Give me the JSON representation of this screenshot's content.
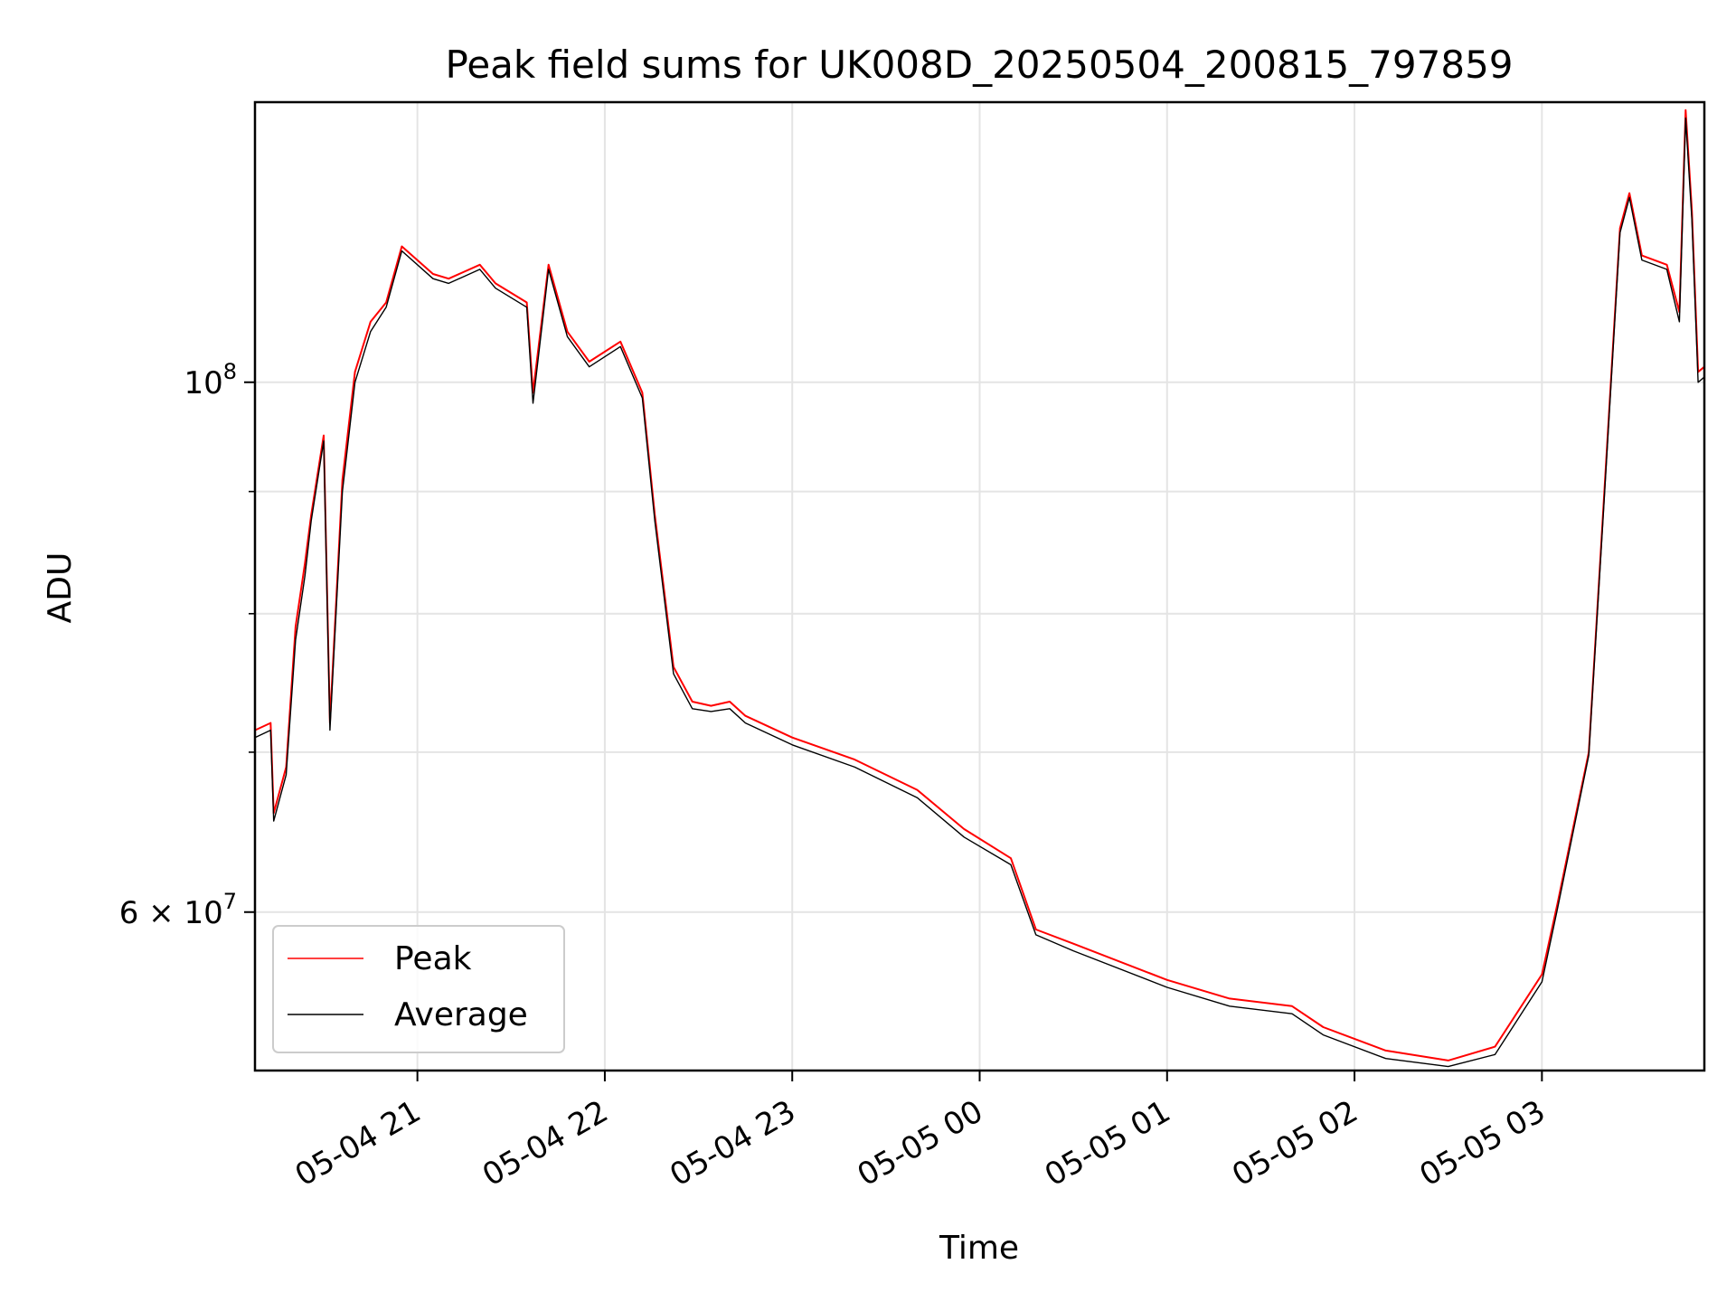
{
  "chart_data": {
    "type": "line",
    "title": "Peak field sums for UK008D_20250504_200815_797859",
    "xlabel": "Time",
    "ylabel": "ADU",
    "y_scale": "log",
    "ylim": [
      51500000,
      131000000
    ],
    "xlim": [
      "2025-05-04 20:08",
      "2025-05-05 03:52"
    ],
    "grid": true,
    "legend_position": "lower-left",
    "x_ticks": [
      {
        "t": "2025-05-04 21:00",
        "label": "05-04 21"
      },
      {
        "t": "2025-05-04 22:00",
        "label": "05-04 22"
      },
      {
        "t": "2025-05-04 23:00",
        "label": "05-04 23"
      },
      {
        "t": "2025-05-05 00:00",
        "label": "05-05 00"
      },
      {
        "t": "2025-05-05 01:00",
        "label": "05-05 01"
      },
      {
        "t": "2025-05-05 02:00",
        "label": "05-05 02"
      },
      {
        "t": "2025-05-05 03:00",
        "label": "05-05 03"
      }
    ],
    "y_major_ticks": [
      {
        "v": 60000000,
        "base": "6 × 10",
        "exp": "7"
      },
      {
        "v": 100000000,
        "base": "10",
        "exp": "8"
      }
    ],
    "y_minor_ticks": [
      70000000,
      80000000,
      90000000
    ],
    "series": [
      {
        "name": "Peak",
        "color": "#ff0000",
        "points": [
          [
            "2025-05-04 20:08",
            71500000
          ],
          [
            "2025-05-04 20:13",
            72000000
          ],
          [
            "2025-05-04 20:14",
            66000000
          ],
          [
            "2025-05-04 20:18",
            69000000
          ],
          [
            "2025-05-04 20:21",
            79000000
          ],
          [
            "2025-05-04 20:24",
            84000000
          ],
          [
            "2025-05-04 20:26",
            88000000
          ],
          [
            "2025-05-04 20:30",
            95000000
          ],
          [
            "2025-05-04 20:32",
            72000000
          ],
          [
            "2025-05-04 20:36",
            91000000
          ],
          [
            "2025-05-04 20:40",
            101000000
          ],
          [
            "2025-05-04 20:45",
            106000000
          ],
          [
            "2025-05-04 20:50",
            108000000
          ],
          [
            "2025-05-04 20:55",
            114000000
          ],
          [
            "2025-05-04 21:05",
            111000000
          ],
          [
            "2025-05-04 21:10",
            110500000
          ],
          [
            "2025-05-04 21:20",
            112000000
          ],
          [
            "2025-05-04 21:25",
            110000000
          ],
          [
            "2025-05-04 21:35",
            108000000
          ],
          [
            "2025-05-04 21:37",
            99000000
          ],
          [
            "2025-05-04 21:42",
            112000000
          ],
          [
            "2025-05-04 21:48",
            105000000
          ],
          [
            "2025-05-04 21:55",
            102000000
          ],
          [
            "2025-05-04 22:05",
            104000000
          ],
          [
            "2025-05-04 22:12",
            99000000
          ],
          [
            "2025-05-04 22:16",
            88000000
          ],
          [
            "2025-05-04 22:22",
            76000000
          ],
          [
            "2025-05-04 22:28",
            73500000
          ],
          [
            "2025-05-04 22:34",
            73200000
          ],
          [
            "2025-05-04 22:40",
            73500000
          ],
          [
            "2025-05-04 22:45",
            72500000
          ],
          [
            "2025-05-04 23:00",
            71000000
          ],
          [
            "2025-05-04 23:20",
            69500000
          ],
          [
            "2025-05-04 23:40",
            67500000
          ],
          [
            "2025-05-04 23:55",
            65000000
          ],
          [
            "2025-05-05 00:10",
            63200000
          ],
          [
            "2025-05-05 00:18",
            59000000
          ],
          [
            "2025-05-05 00:30",
            58200000
          ],
          [
            "2025-05-05 01:00",
            56200000
          ],
          [
            "2025-05-05 01:20",
            55200000
          ],
          [
            "2025-05-05 01:40",
            54800000
          ],
          [
            "2025-05-05 01:50",
            53700000
          ],
          [
            "2025-05-05 02:10",
            52500000
          ],
          [
            "2025-05-05 02:30",
            52000000
          ],
          [
            "2025-05-05 02:45",
            52700000
          ],
          [
            "2025-05-05 03:00",
            56500000
          ],
          [
            "2025-05-05 03:05",
            60500000
          ],
          [
            "2025-05-05 03:15",
            70000000
          ],
          [
            "2025-05-05 03:20",
            90000000
          ],
          [
            "2025-05-05 03:25",
            116000000
          ],
          [
            "2025-05-05 03:28",
            120000000
          ],
          [
            "2025-05-05 03:32",
            113000000
          ],
          [
            "2025-05-05 03:40",
            112000000
          ],
          [
            "2025-05-05 03:44",
            107000000
          ],
          [
            "2025-05-05 03:46",
            130000000
          ],
          [
            "2025-05-05 03:48",
            118000000
          ],
          [
            "2025-05-05 03:50",
            101000000
          ],
          [
            "2025-05-05 03:52",
            101500000
          ]
        ]
      },
      {
        "name": "Average",
        "color": "#000000",
        "points": [
          [
            "2025-05-04 20:08",
            71000000
          ],
          [
            "2025-05-04 20:13",
            71500000
          ],
          [
            "2025-05-04 20:14",
            65500000
          ],
          [
            "2025-05-04 20:18",
            68500000
          ],
          [
            "2025-05-04 20:21",
            78000000
          ],
          [
            "2025-05-04 20:24",
            83000000
          ],
          [
            "2025-05-04 20:26",
            87500000
          ],
          [
            "2025-05-04 20:30",
            94500000
          ],
          [
            "2025-05-04 20:32",
            71500000
          ],
          [
            "2025-05-04 20:36",
            90000000
          ],
          [
            "2025-05-04 20:40",
            100000000
          ],
          [
            "2025-05-04 20:45",
            105000000
          ],
          [
            "2025-05-04 20:50",
            107500000
          ],
          [
            "2025-05-04 20:55",
            113500000
          ],
          [
            "2025-05-04 21:05",
            110500000
          ],
          [
            "2025-05-04 21:10",
            110000000
          ],
          [
            "2025-05-04 21:20",
            111500000
          ],
          [
            "2025-05-04 21:25",
            109500000
          ],
          [
            "2025-05-04 21:35",
            107500000
          ],
          [
            "2025-05-04 21:37",
            98000000
          ],
          [
            "2025-05-04 21:42",
            111500000
          ],
          [
            "2025-05-04 21:48",
            104500000
          ],
          [
            "2025-05-04 21:55",
            101500000
          ],
          [
            "2025-05-04 22:05",
            103500000
          ],
          [
            "2025-05-04 22:12",
            98500000
          ],
          [
            "2025-05-04 22:16",
            87500000
          ],
          [
            "2025-05-04 22:22",
            75500000
          ],
          [
            "2025-05-04 22:28",
            73000000
          ],
          [
            "2025-05-04 22:34",
            72800000
          ],
          [
            "2025-05-04 22:40",
            73000000
          ],
          [
            "2025-05-04 22:45",
            72000000
          ],
          [
            "2025-05-04 23:00",
            70500000
          ],
          [
            "2025-05-04 23:20",
            69000000
          ],
          [
            "2025-05-04 23:40",
            67000000
          ],
          [
            "2025-05-04 23:55",
            64500000
          ],
          [
            "2025-05-05 00:10",
            62800000
          ],
          [
            "2025-05-05 00:18",
            58700000
          ],
          [
            "2025-05-05 00:30",
            57800000
          ],
          [
            "2025-05-05 01:00",
            55800000
          ],
          [
            "2025-05-05 01:20",
            54800000
          ],
          [
            "2025-05-05 01:40",
            54400000
          ],
          [
            "2025-05-05 01:50",
            53300000
          ],
          [
            "2025-05-05 02:10",
            52100000
          ],
          [
            "2025-05-05 02:30",
            51700000
          ],
          [
            "2025-05-05 02:45",
            52300000
          ],
          [
            "2025-05-05 03:00",
            56100000
          ],
          [
            "2025-05-05 03:05",
            60200000
          ],
          [
            "2025-05-05 03:15",
            69800000
          ],
          [
            "2025-05-05 03:20",
            89500000
          ],
          [
            "2025-05-05 03:25",
            115500000
          ],
          [
            "2025-05-05 03:28",
            119500000
          ],
          [
            "2025-05-05 03:32",
            112500000
          ],
          [
            "2025-05-05 03:40",
            111500000
          ],
          [
            "2025-05-05 03:44",
            106000000
          ],
          [
            "2025-05-05 03:46",
            129000000
          ],
          [
            "2025-05-05 03:48",
            117000000
          ],
          [
            "2025-05-05 03:50",
            100000000
          ],
          [
            "2025-05-05 03:52",
            100500000
          ]
        ]
      }
    ]
  }
}
